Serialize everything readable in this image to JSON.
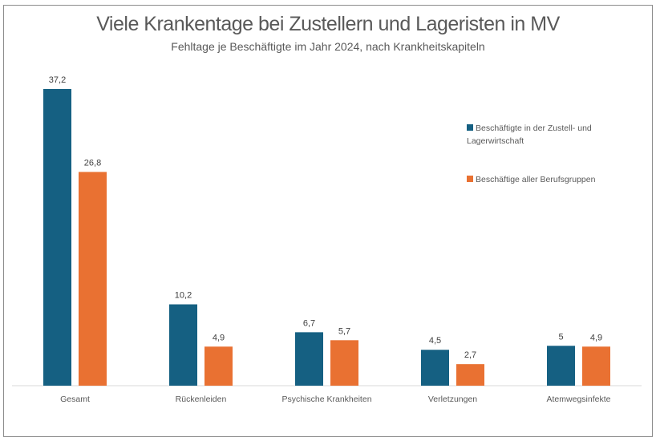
{
  "chart_data": {
    "type": "bar",
    "title": "Viele Krankentage bei Zustellern und Lageristen in MV",
    "subtitle": "Fehltage je Beschäftigte im Jahr 2024, nach Krankheitskapiteln",
    "categories": [
      "Gesamt",
      "Rückenleiden",
      "Psychische Krankheiten",
      "Verletzungen",
      "Atemwegsinfekte"
    ],
    "series": [
      {
        "name": "Beschäftigte in der Zustell- und Lagerwirtschaft",
        "values": [
          37.2,
          10.2,
          6.7,
          4.5,
          5
        ],
        "labels": [
          "37,2",
          "10,2",
          "6,7",
          "4,5",
          "5"
        ],
        "color": "#156082"
      },
      {
        "name": "Beschäftige aller Berufsgruppen",
        "values": [
          26.8,
          4.9,
          5.7,
          2.7,
          4.9
        ],
        "labels": [
          "26,8",
          "4,9",
          "5,7",
          "2,7",
          "4,9"
        ],
        "color": "#E97132"
      }
    ],
    "ylim": [
      0,
      37.2
    ],
    "grid": false,
    "legend": "right"
  }
}
